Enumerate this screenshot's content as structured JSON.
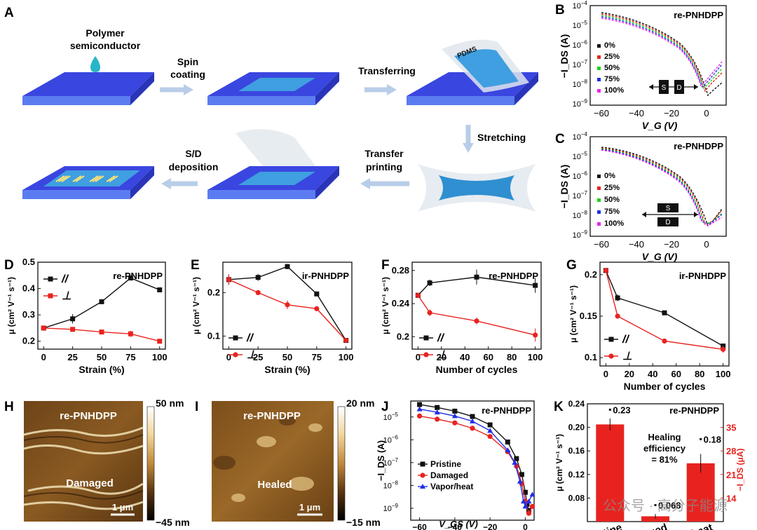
{
  "panelA": {
    "letter": "A",
    "steps": {
      "polymer": [
        "Polymer",
        "semiconductor"
      ],
      "spin": [
        "Spin",
        "coating"
      ],
      "transfer": "Transferring",
      "stretch": "Stretching",
      "transferprint": [
        "Transfer",
        "printing"
      ],
      "sd": [
        "S/D",
        "deposition"
      ],
      "pdms": "PDMS"
    }
  },
  "panelB": {
    "letter": "B",
    "title": "re-PNHDPP",
    "xlabel": "V_G (V)",
    "ylabel": "−I_DS (A)",
    "legend": [
      "0%",
      "25%",
      "50%",
      "75%",
      "100%"
    ],
    "electrodes": [
      "S",
      "D"
    ]
  },
  "panelC": {
    "letter": "C",
    "title": "re-PNHDPP",
    "xlabel": "V_G (V)",
    "ylabel": "−I_DS (A)",
    "legend": [
      "0%",
      "25%",
      "50%",
      "75%",
      "100%"
    ],
    "electrodes": [
      "S",
      "D"
    ]
  },
  "panelH": {
    "letter": "H",
    "title": "re-PNHDPP",
    "label": "Damaged",
    "scale": "1 μm",
    "cb_max": "50 nm",
    "cb_min": "−45 nm"
  },
  "panelI": {
    "letter": "I",
    "title": "re-PNHDPP",
    "label": "Healed",
    "scale": "1 μm",
    "cb_max": "20 nm",
    "cb_min": "−15 nm"
  },
  "panelK_note": {
    "healing_1": "Healing",
    "healing_2": "efficiency",
    "healing_3": "= 81%"
  },
  "watermark": "公众号 · 高分子能源",
  "colors": {
    "black": "#111111",
    "red": "#e8231f",
    "green": "#1fd11f",
    "blue": "#1f2fe8",
    "magenta": "#ee22ee",
    "substrate": "#3a46e0",
    "film": "#3f9fe0"
  },
  "chart_data": [
    {
      "id": "D",
      "type": "line",
      "title": "re-PNHDPP",
      "xlabel": "Strain (%)",
      "ylabel": "μ (cm² V⁻¹ s⁻¹)",
      "xlim": [
        -5,
        105
      ],
      "ylim": [
        0.17,
        0.5
      ],
      "xticks": [
        0,
        25,
        50,
        75,
        100
      ],
      "yticks": [
        0.2,
        0.3,
        0.4,
        0.5
      ],
      "series": [
        {
          "name": "//",
          "color": "#111111",
          "marker": "square",
          "x": [
            0,
            25,
            50,
            75,
            100
          ],
          "y": [
            0.25,
            0.285,
            0.35,
            0.44,
            0.395
          ],
          "err": [
            0.005,
            0.018,
            0.006,
            0.005,
            0.004
          ]
        },
        {
          "name": "⊥",
          "color": "#e8231f",
          "marker": "square",
          "x": [
            0,
            25,
            50,
            75,
            100
          ],
          "y": [
            0.25,
            0.245,
            0.235,
            0.228,
            0.2
          ],
          "err": [
            0.005,
            0.004,
            0.004,
            0.012,
            0.006
          ]
        }
      ]
    },
    {
      "id": "E",
      "type": "line",
      "title": "ir-PNHDPP",
      "xlabel": "Strain (%)",
      "ylabel": "μ (cm² V⁻¹ s⁻¹)",
      "xlim": [
        -5,
        105
      ],
      "ylim": [
        0.07,
        0.27
      ],
      "xticks": [
        0,
        25,
        50,
        75,
        100
      ],
      "yticks": [
        0.1,
        0.2
      ],
      "series": [
        {
          "name": "//",
          "color": "#111111",
          "marker": "square",
          "x": [
            0,
            25,
            50,
            75,
            100
          ],
          "y": [
            0.23,
            0.235,
            0.26,
            0.197,
            0.09
          ],
          "err": [
            0.012,
            0.008,
            0.006,
            0.004,
            0.003
          ]
        },
        {
          "name": "⊥",
          "color": "#e8231f",
          "marker": "circle",
          "x": [
            0,
            25,
            50,
            75,
            100
          ],
          "y": [
            0.23,
            0.2,
            0.172,
            0.163,
            0.09
          ],
          "err": [
            0.012,
            0.004,
            0.01,
            0.004,
            0.003
          ]
        }
      ]
    },
    {
      "id": "F",
      "type": "line",
      "title": "re-PNHDPP",
      "xlabel": "Number of cycles",
      "ylabel": "μ (cm² V⁻¹ s⁻¹)",
      "xlim": [
        -5,
        105
      ],
      "ylim": [
        0.185,
        0.29
      ],
      "xticks": [
        0,
        20,
        40,
        60,
        80,
        100
      ],
      "yticks": [
        0.2,
        0.24,
        0.28
      ],
      "series": [
        {
          "name": "//",
          "color": "#111111",
          "marker": "square",
          "x": [
            0,
            10,
            50,
            100
          ],
          "y": [
            0.25,
            0.265,
            0.272,
            0.262
          ],
          "err": [
            0.003,
            0.004,
            0.009,
            0.009
          ]
        },
        {
          "name": "⊥",
          "color": "#e8231f",
          "marker": "circle",
          "x": [
            0,
            10,
            50,
            100
          ],
          "y": [
            0.25,
            0.229,
            0.219,
            0.202
          ],
          "err": [
            0.003,
            0.004,
            0.004,
            0.008
          ]
        }
      ]
    },
    {
      "id": "G",
      "type": "line",
      "title": "ir-PNHDPP",
      "xlabel": "Number of cycles",
      "ylabel": "μ (cm² V⁻¹ s⁻¹)",
      "xlim": [
        -5,
        105
      ],
      "ylim": [
        0.09,
        0.215
      ],
      "xticks": [
        0,
        20,
        40,
        60,
        80,
        100
      ],
      "yticks": [
        0.1,
        0.15,
        0.2
      ],
      "series": [
        {
          "name": "//",
          "color": "#111111",
          "marker": "square",
          "x": [
            0,
            10,
            50,
            100
          ],
          "y": [
            0.205,
            0.172,
            0.154,
            0.114
          ],
          "err": [
            0.002,
            0.004,
            0.002,
            0.003
          ]
        },
        {
          "name": "⊥",
          "color": "#e8231f",
          "marker": "circle",
          "x": [
            0,
            10,
            50,
            100
          ],
          "y": [
            0.205,
            0.15,
            0.12,
            0.11
          ],
          "err": [
            0.002,
            0.002,
            0.002,
            0.004
          ]
        }
      ]
    },
    {
      "id": "J",
      "type": "line",
      "title": "re-PNHDPP",
      "xlabel": "V_GS (V)",
      "ylabel": "−I_DS (A)",
      "yscale": "log",
      "xlim": [
        -65,
        5
      ],
      "ylim": [
        3e-10,
        5e-05
      ],
      "xticks": [
        -60,
        -40,
        -20,
        0
      ],
      "series": [
        {
          "name": "Pristine",
          "color": "#111111",
          "marker": "square",
          "x": [
            -60,
            -50,
            -40,
            -30,
            -20,
            -10,
            -5,
            -2,
            0,
            1,
            2
          ],
          "y": [
            3.5e-05,
            2.6e-05,
            1.8e-05,
            1.05e-05,
            4.5e-06,
            8e-07,
            1.5e-07,
            3e-08,
            5e-09,
            1.5e-09,
            8e-10
          ]
        },
        {
          "name": "Damaged",
          "color": "#e8231f",
          "marker": "circle",
          "x": [
            -60,
            -50,
            -40,
            -30,
            -20,
            -10,
            -5,
            -2,
            0,
            2,
            4
          ],
          "y": [
            1.1e-05,
            8e-06,
            5.5e-06,
            3.2e-06,
            1.4e-06,
            3e-07,
            7e-08,
            1.2e-08,
            2e-09,
            6e-10,
            1.2e-09
          ]
        },
        {
          "name": "Vapor/heat",
          "color": "#1f2fe8",
          "marker": "triangle",
          "x": [
            -60,
            -50,
            -40,
            -30,
            -20,
            -10,
            -6,
            -3,
            -1,
            0,
            2,
            4
          ],
          "y": [
            2.2e-05,
            1.6e-05,
            1.1e-05,
            6.5e-06,
            2.5e-06,
            3.5e-07,
            1e-07,
            1.5e-08,
            2e-09,
            1.2e-09,
            2e-09,
            4e-09
          ]
        }
      ]
    },
    {
      "id": "K",
      "type": "bar",
      "title": "re-PNHDPP",
      "categories": [
        "Pristine",
        "Damaged",
        "Vapor/heat"
      ],
      "ylabel": "μ (cm² V⁻¹ s⁻¹)",
      "y2label": "−I_DS (μA)",
      "ylim": [
        0.04,
        0.24
      ],
      "y2lim": [
        7,
        42
      ],
      "yticks": [
        0.08,
        0.12,
        0.16,
        0.2,
        0.24
      ],
      "y2ticks": [
        14,
        21,
        28,
        35
      ],
      "bar_values": [
        0.205,
        0.049,
        0.139
      ],
      "bar_err": [
        0.01,
        0.004,
        0.016
      ],
      "point_labels": [
        "0.23",
        "0.068",
        "0.18"
      ],
      "point_values": [
        0.23,
        0.068,
        0.18
      ],
      "color": "#e8231f"
    }
  ]
}
